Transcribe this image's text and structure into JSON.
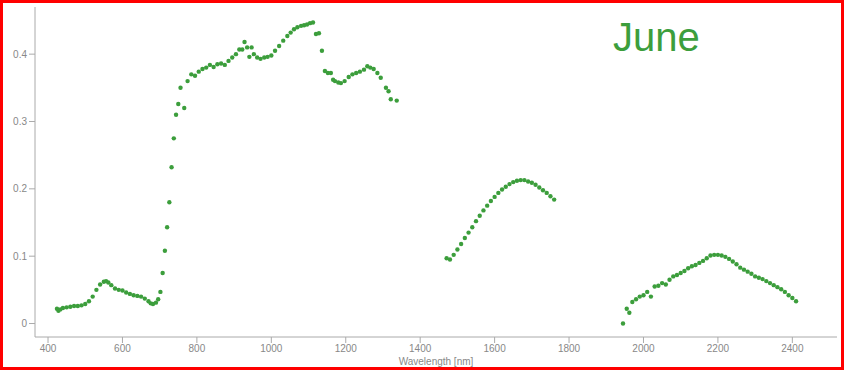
{
  "chart_data": {
    "type": "scatter",
    "title": "June",
    "x_label": "Wavelength [nm]",
    "color": "#3c9e3c",
    "marker": "circle",
    "grid": false,
    "xlim": [
      365,
      2520
    ],
    "ylim": [
      -0.02,
      0.47
    ],
    "xticks": [
      400,
      600,
      800,
      1000,
      1200,
      1400,
      1600,
      1800,
      2000,
      2200,
      2400
    ],
    "yticks": [
      0,
      0.1,
      0.2,
      0.3,
      0.4
    ],
    "x": [
      424,
      428,
      433,
      440,
      450,
      460,
      470,
      480,
      490,
      500,
      510,
      520,
      530,
      540,
      550,
      556,
      562,
      570,
      580,
      590,
      600,
      610,
      620,
      630,
      640,
      650,
      660,
      670,
      676,
      682,
      690,
      696,
      702,
      708,
      714,
      720,
      726,
      732,
      738,
      744,
      750,
      756,
      766,
      775,
      785,
      795,
      805,
      815,
      825,
      835,
      845,
      855,
      865,
      875,
      885,
      895,
      905,
      914,
      922,
      928,
      935,
      941,
      947,
      953,
      962,
      971,
      981,
      990,
      1000,
      1010,
      1021,
      1032,
      1043,
      1052,
      1061,
      1070,
      1080,
      1088,
      1096,
      1104,
      1112,
      1120,
      1128,
      1136,
      1144,
      1152,
      1160,
      1166,
      1171,
      1180,
      1187,
      1197,
      1208,
      1218,
      1228,
      1238,
      1249,
      1258,
      1266,
      1275,
      1285,
      1294,
      1308,
      1315,
      1321,
      1337,
      1471,
      1480,
      1490,
      1500,
      1510,
      1520,
      1530,
      1540,
      1550,
      1560,
      1570,
      1580,
      1590,
      1600,
      1610,
      1620,
      1630,
      1640,
      1650,
      1660,
      1670,
      1680,
      1690,
      1700,
      1710,
      1720,
      1730,
      1740,
      1750,
      1760,
      1945,
      1955,
      1962,
      1970,
      1980,
      1990,
      2000,
      2010,
      2020,
      2030,
      2040,
      2050,
      2060,
      2070,
      2080,
      2090,
      2100,
      2110,
      2120,
      2130,
      2140,
      2150,
      2160,
      2170,
      2180,
      2190,
      2200,
      2210,
      2220,
      2230,
      2240,
      2250,
      2260,
      2270,
      2280,
      2290,
      2300,
      2310,
      2320,
      2330,
      2340,
      2350,
      2360,
      2370,
      2380,
      2390,
      2400,
      2410
    ],
    "values": [
      0.022,
      0.019,
      0.021,
      0.023,
      0.024,
      0.025,
      0.026,
      0.026,
      0.027,
      0.029,
      0.033,
      0.04,
      0.05,
      0.058,
      0.062,
      0.063,
      0.061,
      0.057,
      0.052,
      0.05,
      0.049,
      0.046,
      0.044,
      0.042,
      0.041,
      0.04,
      0.037,
      0.033,
      0.03,
      0.029,
      0.031,
      0.036,
      0.047,
      0.075,
      0.108,
      0.143,
      0.18,
      0.232,
      0.275,
      0.31,
      0.326,
      0.35,
      0.32,
      0.36,
      0.37,
      0.368,
      0.374,
      0.378,
      0.38,
      0.384,
      0.381,
      0.385,
      0.386,
      0.384,
      0.39,
      0.395,
      0.4,
      0.407,
      0.407,
      0.418,
      0.41,
      0.396,
      0.41,
      0.4,
      0.395,
      0.393,
      0.395,
      0.396,
      0.398,
      0.405,
      0.412,
      0.42,
      0.427,
      0.432,
      0.437,
      0.44,
      0.442,
      0.443,
      0.444,
      0.446,
      0.447,
      0.43,
      0.431,
      0.405,
      0.375,
      0.372,
      0.372,
      0.362,
      0.36,
      0.358,
      0.357,
      0.36,
      0.366,
      0.37,
      0.372,
      0.374,
      0.377,
      0.382,
      0.38,
      0.378,
      0.372,
      0.365,
      0.35,
      0.345,
      0.333,
      0.331,
      0.097,
      0.095,
      0.102,
      0.11,
      0.118,
      0.127,
      0.135,
      0.143,
      0.152,
      0.16,
      0.168,
      0.175,
      0.182,
      0.188,
      0.194,
      0.199,
      0.203,
      0.207,
      0.21,
      0.212,
      0.213,
      0.213,
      0.211,
      0.209,
      0.206,
      0.202,
      0.198,
      0.194,
      0.189,
      0.184,
      0.0,
      0.022,
      0.016,
      0.032,
      0.036,
      0.04,
      0.042,
      0.047,
      0.04,
      0.055,
      0.056,
      0.06,
      0.058,
      0.065,
      0.07,
      0.072,
      0.075,
      0.078,
      0.082,
      0.085,
      0.087,
      0.09,
      0.093,
      0.097,
      0.101,
      0.102,
      0.102,
      0.101,
      0.099,
      0.096,
      0.092,
      0.088,
      0.083,
      0.08,
      0.077,
      0.074,
      0.07,
      0.068,
      0.066,
      0.063,
      0.06,
      0.057,
      0.054,
      0.051,
      0.047,
      0.042,
      0.038,
      0.033
    ]
  }
}
